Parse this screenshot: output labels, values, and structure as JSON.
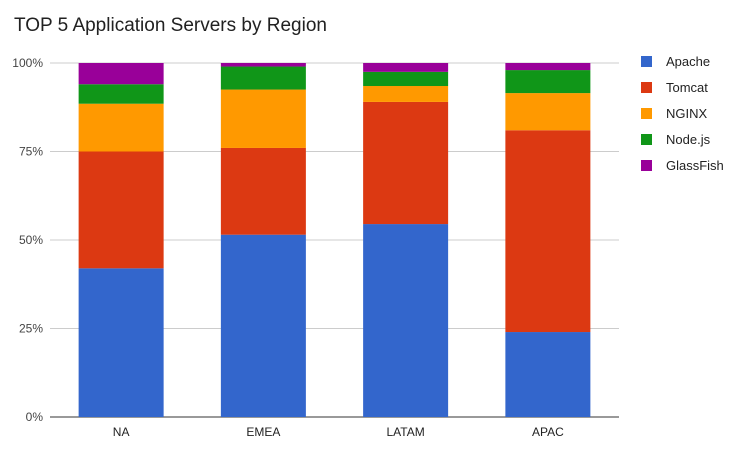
{
  "chart_data": {
    "type": "bar",
    "stacked": true,
    "percent_stacked": true,
    "title": "TOP 5 Application Servers by Region",
    "xlabel": "",
    "ylabel": "",
    "categories": [
      "NA",
      "EMEA",
      "LATAM",
      "APAC"
    ],
    "ylim": [
      0,
      100
    ],
    "yticks": [
      "0%",
      "25%",
      "50%",
      "75%",
      "100%"
    ],
    "grid": true,
    "legend": "right",
    "series": [
      {
        "name": "Apache",
        "color": "#3366cc",
        "values": [
          42,
          51.5,
          54.5,
          24
        ]
      },
      {
        "name": "Tomcat",
        "color": "#dc3912",
        "values": [
          33,
          24.5,
          34.5,
          57
        ]
      },
      {
        "name": "NGINX",
        "color": "#ff9900",
        "values": [
          13.5,
          16.5,
          4.5,
          10.5
        ]
      },
      {
        "name": "Node.js",
        "color": "#109618",
        "values": [
          5.5,
          6.5,
          4,
          6.5
        ]
      },
      {
        "name": "GlassFish",
        "color": "#990099",
        "values": [
          6,
          1,
          2.5,
          2
        ]
      }
    ]
  }
}
